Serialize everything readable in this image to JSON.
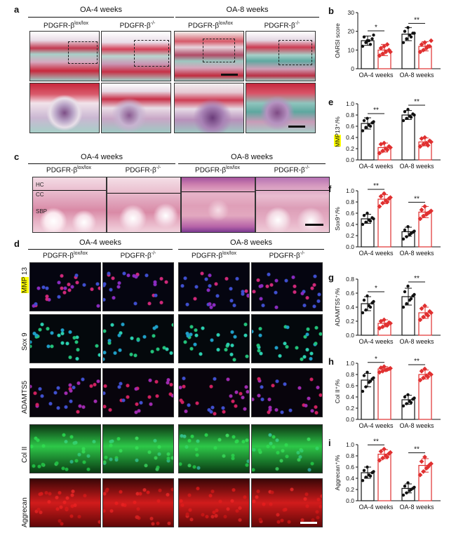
{
  "panels": {
    "a": {
      "letter": "a",
      "groups": [
        "OA-4 weeks",
        "OA-8 weeks"
      ],
      "genotypes": [
        {
          "base": "PDGFR-β",
          "sup": "lox/lox"
        },
        {
          "base": "PDGFR-β",
          "sup": "-/-"
        },
        {
          "base": "PDGFR-β",
          "sup": "lox/lox"
        },
        {
          "base": "PDGFR-β",
          "sup": "-/-"
        }
      ]
    },
    "c": {
      "letter": "c",
      "groups": [
        "OA-4 weeks",
        "OA-8 weeks"
      ],
      "genotypes": [
        {
          "base": "PDGFR-β",
          "sup": "lox/lox"
        },
        {
          "base": "PDGFR-β",
          "sup": "-/-"
        },
        {
          "base": "PDGFR-β",
          "sup": "lox/lox"
        },
        {
          "base": "PDGFR-β",
          "sup": "-/-"
        }
      ],
      "layer_labels": [
        "HC",
        "CC",
        "SBP"
      ]
    },
    "d": {
      "letter": "d",
      "groups": [
        "OA-4 weeks",
        "OA-8 weeks"
      ],
      "genotypes": [
        {
          "base": "PDGFR-β",
          "sup": "lox/lox"
        },
        {
          "base": "PDGFR-β",
          "sup": "-/-"
        },
        {
          "base": "PDGFR-β",
          "sup": "lox/lox"
        },
        {
          "base": "PDGFR-β",
          "sup": "-/-"
        }
      ],
      "rows": [
        "MMP 13",
        "Sox 9",
        "ADAMTS5",
        "Col II",
        "Aggrecan"
      ]
    }
  },
  "colors": {
    "control": "#111111",
    "knockout": "#e03030",
    "safranin_red": "#c8283c",
    "fast_green": "#5aa8a0",
    "he_pink": "#e9b8c8",
    "highlight": "#ffff00"
  },
  "chart_data": [
    {
      "panel": "b",
      "type": "bar",
      "ylabel": "OARSI score",
      "categories": [
        "OA-4 weeks",
        "OA-8 weeks"
      ],
      "ylim": [
        0,
        30
      ],
      "yticks": [
        0,
        10,
        20,
        30
      ],
      "means": [
        15,
        10,
        18.5,
        12
      ],
      "errors": [
        2.5,
        3,
        3.5,
        2.5
      ],
      "points": [
        [
          12,
          14,
          15,
          16,
          17,
          15,
          13,
          18
        ],
        [
          7,
          8,
          9,
          10,
          11,
          12,
          13,
          9
        ],
        [
          14,
          16,
          18,
          19,
          20,
          22,
          17,
          19
        ],
        [
          9,
          10,
          11,
          12,
          13,
          14,
          12,
          15
        ]
      ],
      "significance": [
        "*",
        "**"
      ]
    },
    {
      "panel": "e",
      "type": "bar",
      "ylabel": "MMP13⁺/%",
      "ylabel_highlight": "MMP",
      "categories": [
        "OA-4 weeks",
        "OA-8 weeks"
      ],
      "ylim": [
        0,
        1.0
      ],
      "yticks": [
        0.0,
        0.2,
        0.4,
        0.6,
        0.8,
        1.0
      ],
      "means": [
        0.65,
        0.22,
        0.8,
        0.32
      ],
      "errors": [
        0.1,
        0.08,
        0.08,
        0.07
      ],
      "points": [
        [
          0.52,
          0.58,
          0.62,
          0.66,
          0.7,
          0.74,
          0.6,
          0.68
        ],
        [
          0.12,
          0.16,
          0.2,
          0.24,
          0.28,
          0.3,
          0.18,
          0.22
        ],
        [
          0.7,
          0.74,
          0.78,
          0.82,
          0.86,
          0.9,
          0.76,
          0.8
        ],
        [
          0.24,
          0.28,
          0.3,
          0.34,
          0.38,
          0.4,
          0.26,
          0.32
        ]
      ],
      "significance": [
        "**",
        "**"
      ]
    },
    {
      "panel": "f",
      "type": "bar",
      "ylabel": "Sox9⁺/%",
      "categories": [
        "OA-4 weeks",
        "OA-8 weeks"
      ],
      "ylim": [
        0,
        1.0
      ],
      "yticks": [
        0.0,
        0.2,
        0.4,
        0.6,
        0.8,
        1.0
      ],
      "means": [
        0.5,
        0.85,
        0.27,
        0.62
      ],
      "errors": [
        0.08,
        0.08,
        0.08,
        0.1
      ],
      "points": [
        [
          0.4,
          0.44,
          0.48,
          0.52,
          0.56,
          0.6,
          0.46,
          0.5
        ],
        [
          0.72,
          0.78,
          0.82,
          0.86,
          0.9,
          0.95,
          0.8,
          0.88
        ],
        [
          0.14,
          0.18,
          0.22,
          0.26,
          0.3,
          0.36,
          0.24,
          0.28
        ],
        [
          0.5,
          0.55,
          0.58,
          0.62,
          0.66,
          0.72,
          0.6,
          0.64
        ]
      ],
      "significance": [
        "**",
        "**"
      ]
    },
    {
      "panel": "g",
      "type": "bar",
      "ylabel": "ADAMTS5⁺/%",
      "categories": [
        "OA-4 weeks",
        "OA-8 weeks"
      ],
      "ylim": [
        0,
        0.8
      ],
      "yticks": [
        0.0,
        0.2,
        0.4,
        0.6,
        0.8
      ],
      "means": [
        0.45,
        0.17,
        0.55,
        0.32
      ],
      "errors": [
        0.1,
        0.05,
        0.12,
        0.08
      ],
      "points": [
        [
          0.32,
          0.36,
          0.42,
          0.46,
          0.5,
          0.56,
          0.4,
          0.48
        ],
        [
          0.1,
          0.12,
          0.15,
          0.18,
          0.2,
          0.22,
          0.14,
          0.17
        ],
        [
          0.4,
          0.45,
          0.5,
          0.56,
          0.62,
          0.7,
          0.52,
          0.58
        ],
        [
          0.22,
          0.26,
          0.3,
          0.34,
          0.38,
          0.42,
          0.28,
          0.32
        ]
      ],
      "significance": [
        "*",
        "**"
      ]
    },
    {
      "panel": "h",
      "type": "bar",
      "ylabel": "Col II⁺/%",
      "categories": [
        "OA-4 weeks",
        "OA-8 weeks"
      ],
      "ylim": [
        0,
        1.0
      ],
      "yticks": [
        0.0,
        0.2,
        0.4,
        0.6,
        0.8,
        1.0
      ],
      "means": [
        0.7,
        0.9,
        0.35,
        0.8
      ],
      "errors": [
        0.12,
        0.04,
        0.08,
        0.08
      ],
      "points": [
        [
          0.5,
          0.58,
          0.66,
          0.72,
          0.78,
          0.84,
          0.68,
          0.74
        ],
        [
          0.84,
          0.86,
          0.88,
          0.9,
          0.92,
          0.94,
          0.89,
          0.91
        ],
        [
          0.24,
          0.28,
          0.32,
          0.36,
          0.4,
          0.44,
          0.3,
          0.38
        ],
        [
          0.7,
          0.74,
          0.78,
          0.82,
          0.86,
          0.9,
          0.76,
          0.8
        ]
      ],
      "significance": [
        "*",
        "**"
      ]
    },
    {
      "panel": "i",
      "type": "bar",
      "ylabel": "Aggrecan⁺/%",
      "categories": [
        "OA-4 weeks",
        "OA-8 weeks"
      ],
      "ylim": [
        0,
        1.0
      ],
      "yticks": [
        0.0,
        0.2,
        0.4,
        0.6,
        0.8,
        1.0
      ],
      "means": [
        0.5,
        0.83,
        0.22,
        0.63
      ],
      "errors": [
        0.1,
        0.08,
        0.08,
        0.12
      ],
      "points": [
        [
          0.36,
          0.42,
          0.46,
          0.5,
          0.54,
          0.6,
          0.44,
          0.52
        ],
        [
          0.72,
          0.76,
          0.8,
          0.84,
          0.88,
          0.92,
          0.78,
          0.86
        ],
        [
          0.1,
          0.14,
          0.18,
          0.22,
          0.26,
          0.32,
          0.2,
          0.24
        ],
        [
          0.46,
          0.52,
          0.58,
          0.64,
          0.7,
          0.78,
          0.6,
          0.66
        ]
      ],
      "significance": [
        "**",
        "**"
      ]
    }
  ]
}
